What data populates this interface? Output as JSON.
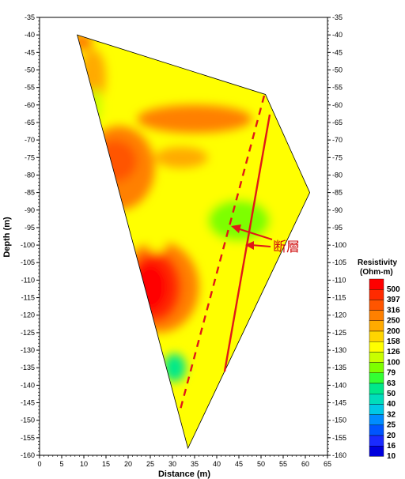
{
  "chart_data": {
    "type": "heatmap",
    "xlabel": "Distance (m)",
    "ylabel": "Depth (m)",
    "xlim": [
      0,
      65
    ],
    "ylim": [
      -160,
      -35
    ],
    "x_ticks": [
      "0",
      "5",
      "10",
      "15",
      "20",
      "25",
      "30",
      "35",
      "40",
      "45",
      "50",
      "55",
      "60",
      "65"
    ],
    "y_ticks": [
      "-35",
      "-40",
      "-45",
      "-50",
      "-55",
      "-60",
      "-65",
      "-70",
      "-75",
      "-80",
      "-85",
      "-90",
      "-95",
      "-100",
      "-105",
      "-110",
      "-115",
      "-120",
      "-125",
      "-130",
      "-135",
      "-140",
      "-145",
      "-150",
      "-155",
      "-160"
    ],
    "section_outline": [
      [
        8.5,
        -40
      ],
      [
        51,
        -57
      ],
      [
        61,
        -85
      ],
      [
        33.5,
        -158
      ]
    ],
    "resistivity_zones": [
      {
        "x": 9.5,
        "y": -42,
        "rx": 2.5,
        "ry": 2.5,
        "value": 250
      },
      {
        "x": 12,
        "y": -52,
        "rx": 3,
        "ry": 8,
        "value": 200
      },
      {
        "x": 18,
        "y": -78,
        "rx": 8,
        "ry": 12,
        "value": 250
      },
      {
        "x": 17,
        "y": -76,
        "rx": 5,
        "ry": 6,
        "value": 316
      },
      {
        "x": 35,
        "y": -64,
        "rx": 13,
        "ry": 4,
        "value": 250
      },
      {
        "x": 32,
        "y": -75,
        "rx": 6,
        "ry": 3,
        "value": 200
      },
      {
        "x": 45,
        "y": -92,
        "rx": 10,
        "ry": 10,
        "value": 126
      },
      {
        "x": 45,
        "y": -93,
        "rx": 7,
        "ry": 6,
        "value": 79
      },
      {
        "x": 27,
        "y": -112,
        "rx": 9,
        "ry": 13,
        "value": 250
      },
      {
        "x": 26,
        "y": -112,
        "rx": 6,
        "ry": 10,
        "value": 397
      },
      {
        "x": 25,
        "y": -112,
        "rx": 4,
        "ry": 7,
        "value": 500
      },
      {
        "x": 30.5,
        "y": -135,
        "rx": 2.5,
        "ry": 4,
        "value": 50
      },
      {
        "x": 12.5,
        "y": -60,
        "rx": 1.5,
        "ry": 5,
        "value": 100
      },
      {
        "x": 26.5,
        "y": -100,
        "rx": 2,
        "ry": 2,
        "value": 126
      }
    ],
    "legend": {
      "title_lines": [
        "Resistivity",
        "(Ohm-m)"
      ],
      "values": [
        "500",
        "397",
        "316",
        "250",
        "200",
        "158",
        "126",
        "100",
        "79",
        "63",
        "50",
        "40",
        "32",
        "25",
        "20",
        "16",
        "10"
      ],
      "colors": [
        "#ff0000",
        "#ff2a00",
        "#ff5500",
        "#ff8000",
        "#ffaa00",
        "#ffd500",
        "#ffff00",
        "#c8ff00",
        "#7dff00",
        "#33ff33",
        "#00e88a",
        "#00ddbb",
        "#00c8e6",
        "#008cff",
        "#0055ff",
        "#1a2bff",
        "#0000dd"
      ]
    },
    "annotations": [
      {
        "text": "断層"
      }
    ]
  }
}
